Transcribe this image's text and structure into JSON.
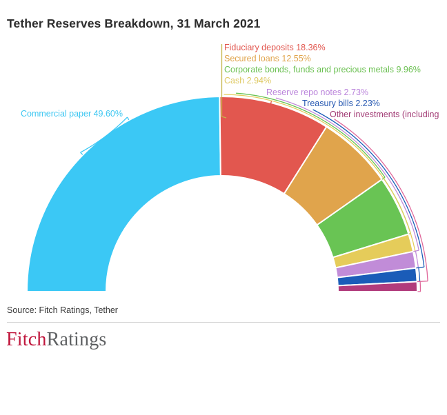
{
  "page": {
    "title": "Tether Reserves Breakdown, 31 March 2021",
    "source": "Source: Fitch Ratings, Tether",
    "logo": {
      "part1": "Fitch",
      "part2": "Ratings"
    }
  },
  "chart_data": {
    "type": "pie",
    "subtype": "half-donut",
    "title": "Tether Reserves Breakdown, 31 March 2021",
    "unit": "%",
    "total": 100,
    "legend_position": "labels-around-arc",
    "segments": [
      {
        "label": "Commercial paper",
        "value": 49.6,
        "display": "Commercial paper 49.60%",
        "color": "#3BC8F5",
        "text_color": "#3EC7F2"
      },
      {
        "label": "Fiduciary deposits",
        "value": 18.36,
        "display": "Fiduciary deposits 18.36%",
        "color": "#E2574F",
        "text_color": "#E2574F"
      },
      {
        "label": "Secured loans",
        "value": 12.55,
        "display": "Secured loans 12.55%",
        "color": "#E0A44C",
        "text_color": "#E0A44C"
      },
      {
        "label": "Corporate bonds, funds and precious metals",
        "value": 9.96,
        "display": "Corporate bonds, funds and precious metals 9.96%",
        "color": "#69C454",
        "text_color": "#6CC153"
      },
      {
        "label": "Cash",
        "value": 2.94,
        "display": "Cash 2.94%",
        "color": "#E5CC5A",
        "text_color": "#DEC860"
      },
      {
        "label": "Reserve repo notes",
        "value": 2.73,
        "display": "Reserve repo notes 2.73%",
        "color": "#C18CD8",
        "text_color": "#BB85DB"
      },
      {
        "label": "Treasury bills",
        "value": 2.23,
        "display": "Treasury bills 2.23%",
        "color": "#1A5CB8",
        "text_color": "#2456B0"
      },
      {
        "label": "Other investments (including",
        "value": 1.63,
        "display": "Other investments (including",
        "color": "#B13C7C",
        "text_color": "#A13A74"
      }
    ]
  }
}
